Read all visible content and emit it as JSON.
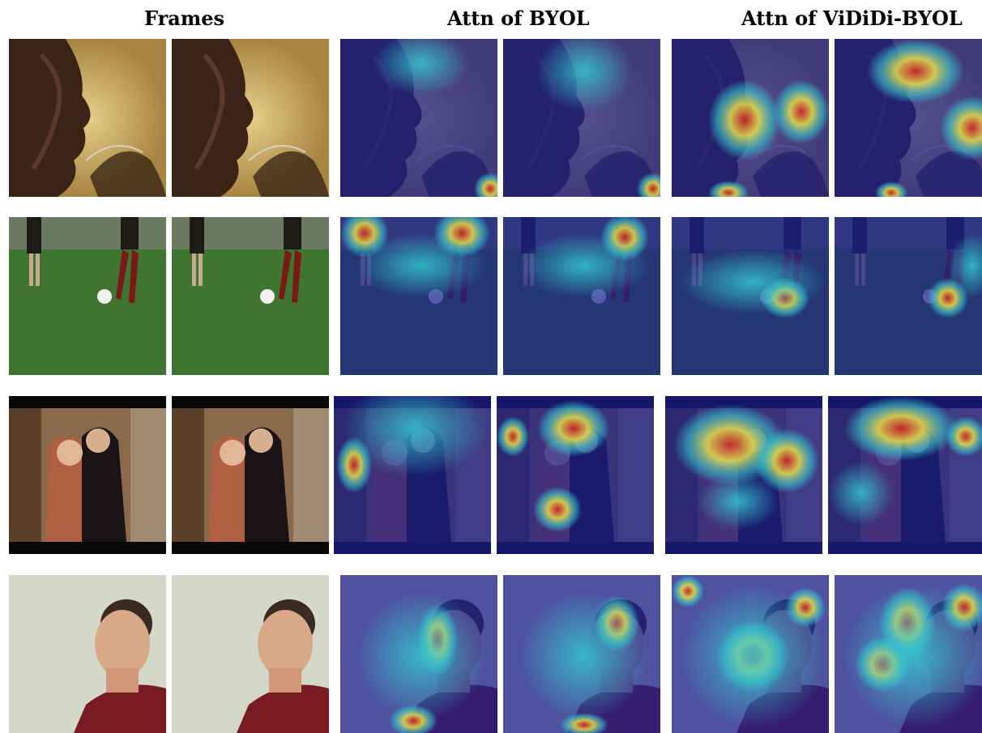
{
  "headers": {
    "frames": "Frames",
    "byol": "Attn of BYOL",
    "vididi": "Attn of ViDiDi-BYOL"
  },
  "rows": [
    {
      "scene": "man-drinking-glass",
      "frame_icon": "man-drinking-photo",
      "attn_icon": "attention-heatmap"
    },
    {
      "scene": "soccer-players-ball",
      "frame_icon": "soccer-photo",
      "attn_icon": "attention-heatmap"
    },
    {
      "scene": "couple-kissing",
      "frame_icon": "couple-photo",
      "attn_icon": "attention-heatmap"
    },
    {
      "scene": "man-face-closeup",
      "frame_icon": "man-face-photo",
      "attn_icon": "attention-heatmap"
    }
  ],
  "colors": {
    "jet_low": "#1a1f8f",
    "jet_mid": "#35c8d0",
    "jet_yellow": "#e8e04a",
    "jet_high": "#d8231c"
  }
}
